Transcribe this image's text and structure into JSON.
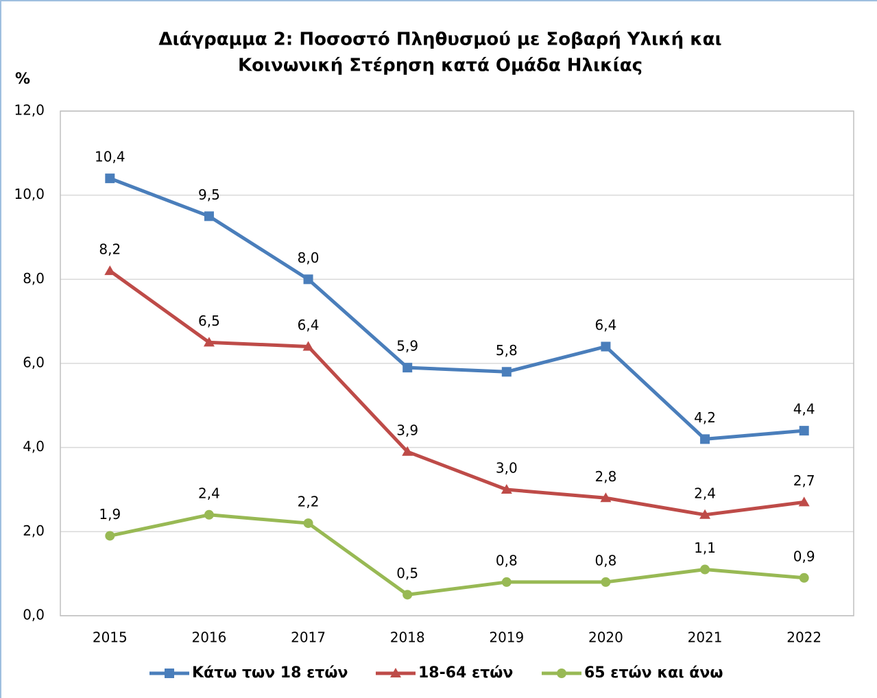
{
  "chart_data": {
    "type": "line",
    "title": [
      "Διάγραμμα 2: Ποσοστό Πληθυσμού με Σοβαρή Υλική και",
      "Κοινωνική Στέρηση κατά Ομάδα Ηλικίας"
    ],
    "y_axis_label": "%",
    "categories": [
      "2015",
      "2016",
      "2017",
      "2018",
      "2019",
      "2020",
      "2021",
      "2022"
    ],
    "series": [
      {
        "name": "Κάτω των 18 ετών",
        "color": "#4a7ebb",
        "marker": "square",
        "values": [
          10.4,
          9.5,
          8.0,
          5.9,
          5.8,
          6.4,
          4.2,
          4.4
        ],
        "value_labels": [
          "10,4",
          "9,5",
          "8,0",
          "5,9",
          "5,8",
          "6,4",
          "4,2",
          "4,4"
        ]
      },
      {
        "name": "18-64 ετών",
        "color": "#be4b48",
        "marker": "triangle",
        "values": [
          8.2,
          6.5,
          6.4,
          3.9,
          3.0,
          2.8,
          2.4,
          2.7
        ],
        "value_labels": [
          "8,2",
          "6,5",
          "6,4",
          "3,9",
          "3,0",
          "2,8",
          "2,4",
          "2,7"
        ]
      },
      {
        "name": "65 ετών και άνω",
        "color": "#98b954",
        "marker": "circle",
        "values": [
          1.9,
          2.4,
          2.2,
          0.5,
          0.8,
          0.8,
          1.1,
          0.9
        ],
        "value_labels": [
          "1,9",
          "2,4",
          "2,2",
          "0,5",
          "0,8",
          "0,8",
          "1,1",
          "0,9"
        ]
      }
    ],
    "ylim": [
      0,
      12
    ],
    "yticks": [
      {
        "value": 0,
        "label": "0,0"
      },
      {
        "value": 2,
        "label": "2,0"
      },
      {
        "value": 4,
        "label": "4,0"
      },
      {
        "value": 6,
        "label": "6,0"
      },
      {
        "value": 8,
        "label": "8,0"
      },
      {
        "value": 10,
        "label": "10,0"
      },
      {
        "value": 12,
        "label": "12,0"
      }
    ],
    "grid": true,
    "legend": "bottom"
  }
}
